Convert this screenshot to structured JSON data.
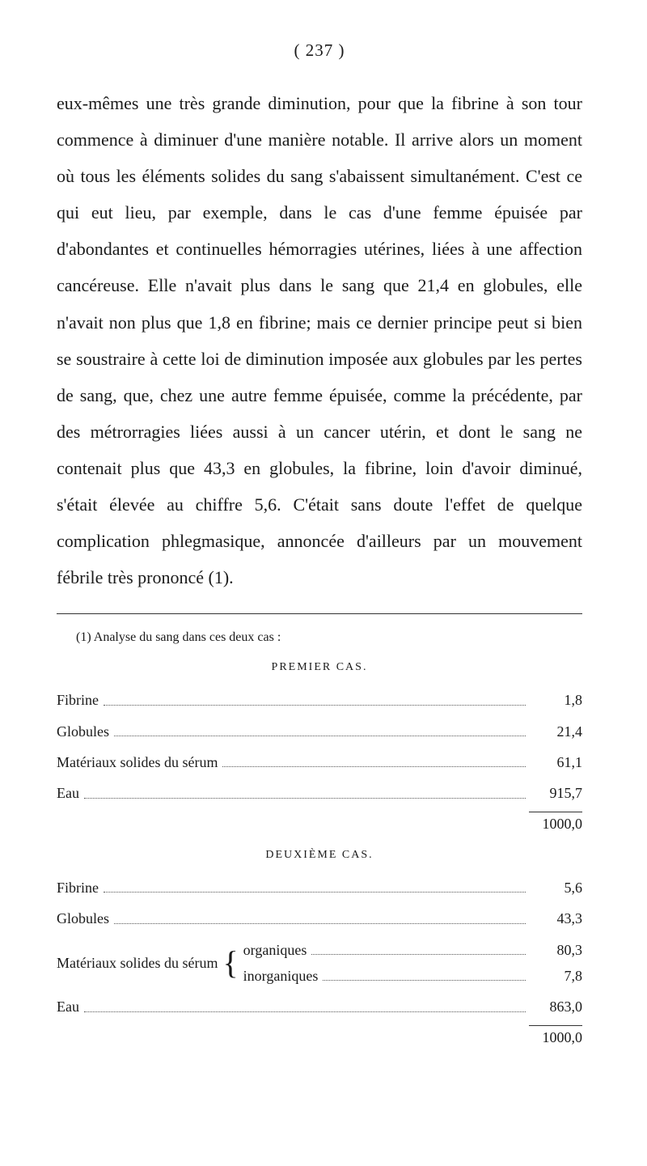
{
  "page_number": "( 237 )",
  "paragraph": "eux-mêmes une très grande diminution, pour que la fibrine à son tour commence à diminuer d'une manière notable. Il arrive alors un moment où tous les éléments solides du sang s'abaissent simultanément. C'est ce qui eut lieu, par exemple, dans le cas d'une femme épuisée par d'abondantes et continuelles hémorragies utérines, liées à une affection cancéreuse. Elle n'avait plus dans le sang que 21,4 en globules, elle n'avait non plus que 1,8 en fibrine; mais ce dernier principe peut si bien se soustraire à cette loi de diminution imposée aux globules par les pertes de sang, que, chez une autre femme épuisée, comme la précédente, par des métrorragies liées aussi à un cancer utérin, et dont le sang ne contenait plus que 43,3 en globules, la fibrine, loin d'avoir diminué, s'était élevée au chiffre 5,6. C'était sans doute l'effet de quelque complication phlegmasique, annoncée d'ailleurs par un mouvement fébrile très prononcé (1).",
  "footnote_ref": "(1) Analyse du sang dans ces deux cas :",
  "case1": {
    "header": "PREMIER CAS.",
    "rows": [
      {
        "label": "Fibrine",
        "value": "1,8"
      },
      {
        "label": "Globules",
        "value": "21,4"
      },
      {
        "label": "Matériaux solides du sérum",
        "value": "61,1"
      },
      {
        "label": "Eau",
        "value": "915,7"
      }
    ],
    "total": "1000,0"
  },
  "case2": {
    "header": "DEUXIÈME CAS.",
    "rows_top": [
      {
        "label": "Fibrine",
        "value": "5,6"
      },
      {
        "label": "Globules",
        "value": "43,3"
      }
    ],
    "serum_label": "Matériaux solides du sérum",
    "serum_sub": [
      {
        "label": "organiques",
        "value": "80,3"
      },
      {
        "label": "inorganiques",
        "value": "7,8"
      }
    ],
    "rows_bottom": [
      {
        "label": "Eau",
        "value": "863,0"
      }
    ],
    "total": "1000,0"
  }
}
